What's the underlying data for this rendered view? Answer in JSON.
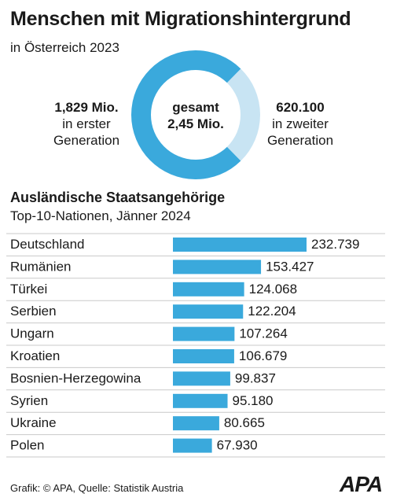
{
  "title": "Menschen mit Migrationshintergrund",
  "subtitle": "in Österreich 2023",
  "donut": {
    "center_line1": "gesamt",
    "center_line2": "2,45 Mio.",
    "left_value": "1,829 Mio.",
    "left_line1": "in erster",
    "left_line2": "Generation",
    "right_value": "620.100",
    "right_line1": "in zweiter",
    "right_line2": "Generation"
  },
  "section": {
    "title": "Ausländische Staatsangehörige",
    "subtitle": "Top-10-Nationen, Jänner 2024"
  },
  "footer": "Grafik: © APA, Quelle: Statistik Austria",
  "logo": "APA",
  "chart_data": [
    {
      "type": "pie",
      "categories": [
        "in erster Generation",
        "in zweiter Generation"
      ],
      "values": [
        1829000,
        620100
      ],
      "colors": [
        "#3aa9dc",
        "#c8e4f3"
      ]
    },
    {
      "type": "bar",
      "orientation": "horizontal",
      "categories": [
        "Deutschland",
        "Rumänien",
        "Türkei",
        "Serbien",
        "Ungarn",
        "Kroatien",
        "Bosnien-Herzegowina",
        "Syrien",
        "Ukraine",
        "Polen"
      ],
      "values": [
        232739,
        153427,
        124068,
        122204,
        107264,
        106679,
        99837,
        95180,
        80665,
        67930
      ],
      "value_labels": [
        "232.739",
        "153.427",
        "124.068",
        "122.204",
        "107.264",
        "106.679",
        "99.837",
        "95.180",
        "80.665",
        "67.930"
      ],
      "color": "#3aa9dc"
    }
  ]
}
